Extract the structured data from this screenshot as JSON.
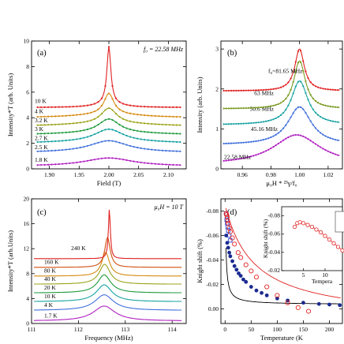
{
  "chart_data": [
    {
      "panel": "(a)",
      "type": "line",
      "annotation": "f₀ = 22.58 MHz",
      "xlabel": "Field (T)",
      "ylabel": "Intensity*T (arb. Units)",
      "xlim": [
        1.87,
        2.13
      ],
      "ylim": [
        0,
        10
      ],
      "xticks": [
        "1.90",
        "1.95",
        "2.00",
        "2.05",
        "2.10"
      ],
      "yticks": [
        "0",
        "2",
        "4",
        "6",
        "8",
        "10"
      ],
      "series": [
        {
          "name": "1.8 K",
          "color": "#b020c0",
          "offset": 0.2,
          "peak_x": 2.0,
          "peak": 0.65,
          "width": 0.05,
          "wing": 0.0
        },
        {
          "name": "2.5 K",
          "color": "#3f6fdc",
          "offset": 1.2,
          "peak_x": 2.0,
          "peak": 0.9,
          "width": 0.04,
          "wing": 0.1
        },
        {
          "name": "2.7 K",
          "color": "#18a2a2",
          "offset": 1.9,
          "peak_x": 2.0,
          "peak": 1.0,
          "width": 0.03,
          "wing": 0.2
        },
        {
          "name": "3 K",
          "color": "#1e9a3c",
          "offset": 2.6,
          "peak_x": 2.0,
          "peak": 1.1,
          "width": 0.022,
          "wing": 0.2
        },
        {
          "name": "3.2 K",
          "color": "#9aa318",
          "offset": 3.3,
          "peak_x": 2.0,
          "peak": 1.2,
          "width": 0.016,
          "wing": 0.25
        },
        {
          "name": "4 K",
          "color": "#d68a12",
          "offset": 4.0,
          "peak_x": 2.0,
          "peak": 1.6,
          "width": 0.01,
          "wing": 0.3
        },
        {
          "name": "10 K",
          "color": "#e02020",
          "offset": 4.8,
          "peak_x": 2.0,
          "peak": 4.4,
          "width": 0.004,
          "wing": 0.35
        }
      ]
    },
    {
      "panel": "(b)",
      "type": "line",
      "xlabel": "μ₀H * ²³γ/f₀",
      "ylabel": "Intensity (arb. Units)",
      "xlim": [
        0.945,
        1.03
      ],
      "ylim": [
        0,
        3.2
      ],
      "xticks": [
        "0.96",
        "0.98",
        "1.00",
        "1.02"
      ],
      "yticks": [
        "0",
        "1",
        "2",
        "3"
      ],
      "series": [
        {
          "name": "22.58 MHz",
          "label": "22.58 MHz",
          "color": "#b020c0",
          "offset": 0.1,
          "peak_x": 0.998,
          "peak": 0.75,
          "width": 0.02
        },
        {
          "name": "45.16 MHz",
          "label": "45.16 MHz",
          "color": "#3f6fdc",
          "offset": 0.6,
          "peak_x": 1.0,
          "peak": 0.95,
          "width": 0.01
        },
        {
          "name": "50.6 MHz",
          "label": "50.6 MHz",
          "color": "#18a2a2",
          "offset": 1.1,
          "peak_x": 1.0,
          "peak": 1.1,
          "width": 0.007
        },
        {
          "name": "63 MHz",
          "label": "63 MHz",
          "color": "#7a9a20",
          "offset": 1.5,
          "peak_x": 1.0,
          "peak": 1.2,
          "width": 0.005
        },
        {
          "name": "81.65 MHz",
          "label": "f₀=81.65 MHz",
          "color": "#e02020",
          "offset": 1.95,
          "peak_x": 1.0,
          "peak": 1.05,
          "width": 0.004
        }
      ]
    },
    {
      "panel": "(c)",
      "type": "line",
      "annotation": "μ₀H = 10 T",
      "xlabel": "Frequency (MHz)",
      "ylabel": "Intensity*T (arb.Units)",
      "xlim": [
        111,
        114.3
      ],
      "ylim": [
        0,
        20
      ],
      "xticks": [
        "111",
        "112",
        "113",
        "114"
      ],
      "yticks": [
        "0",
        "4",
        "8",
        "12",
        "16",
        "20"
      ],
      "series": [
        {
          "name": "1.7 K",
          "color": "#b020c0",
          "offset": 0.4,
          "peak_x": 112.55,
          "peak": 2.4,
          "width": 0.28
        },
        {
          "name": "4 K",
          "color": "#3f6fdc",
          "offset": 2.1,
          "peak_x": 112.55,
          "peak": 2.5,
          "width": 0.24
        },
        {
          "name": "10 K",
          "color": "#18a2a2",
          "offset": 3.5,
          "peak_x": 112.55,
          "peak": 2.7,
          "width": 0.2
        },
        {
          "name": "20 K",
          "color": "#1e9a3c",
          "offset": 4.9,
          "peak_x": 112.55,
          "peak": 2.9,
          "width": 0.17
        },
        {
          "name": "40 K",
          "color": "#9aa318",
          "offset": 6.3,
          "peak_x": 112.56,
          "peak": 3.2,
          "width": 0.14
        },
        {
          "name": "80 K",
          "color": "#d68a12",
          "offset": 7.6,
          "peak_x": 112.58,
          "peak": 3.8,
          "width": 0.1
        },
        {
          "name": "160 K",
          "color": "#d05010",
          "offset": 9.0,
          "peak_x": 112.62,
          "peak": 4.8,
          "width": 0.07
        },
        {
          "name": "240 K",
          "color": "#e02020",
          "offset": 10.4,
          "peak_x": 112.66,
          "peak": 8.0,
          "width": 0.025
        }
      ]
    },
    {
      "panel": "(d)",
      "type": "scatter",
      "xlabel": "Temperature (K",
      "ylabel": "Knight shift (%)",
      "xlim": [
        -8,
        225
      ],
      "ylim": [
        0.012,
        -0.09
      ],
      "xticks": [
        "0",
        "50",
        "100",
        "150",
        "200"
      ],
      "yticks": [
        "-0.08",
        "-0.06",
        "-0.04",
        "-0.02",
        "0.00"
      ],
      "series": [
        {
          "name": "blue-squares",
          "color": "#2040d0",
          "marker": "square",
          "x": [
            2,
            3,
            4,
            5,
            6,
            8,
            10
          ],
          "y": [
            -0.078,
            -0.073,
            -0.07,
            -0.067,
            -0.064,
            -0.06,
            -0.056
          ]
        },
        {
          "name": "blue-circles",
          "color": "#1a2a90",
          "marker": "filled-circle",
          "x": [
            2,
            4,
            6,
            8,
            10,
            14,
            18,
            22,
            26,
            30,
            35,
            40,
            50,
            60,
            70,
            80,
            100,
            120,
            150,
            180,
            200,
            220
          ],
          "y": [
            -0.06,
            -0.054,
            -0.05,
            -0.046,
            -0.043,
            -0.039,
            -0.035,
            -0.032,
            -0.029,
            -0.027,
            -0.024,
            -0.022,
            -0.018,
            -0.015,
            -0.013,
            -0.011,
            -0.0085,
            -0.0068,
            -0.005,
            -0.004,
            -0.0035,
            -0.003
          ]
        },
        {
          "name": "red-circles",
          "color": "#e02020",
          "marker": "open-circle",
          "x": [
            2,
            3,
            4,
            5,
            6,
            8,
            10,
            14,
            18,
            25,
            30,
            40,
            50,
            60,
            80,
            100,
            120,
            140,
            160
          ],
          "y": [
            -0.078,
            -0.077,
            -0.075,
            -0.072,
            -0.07,
            -0.066,
            -0.063,
            -0.058,
            -0.053,
            -0.046,
            -0.042,
            -0.036,
            -0.031,
            -0.026,
            -0.018,
            -0.011,
            -0.005,
            -0.001,
            0.002
          ]
        }
      ],
      "inset": {
        "ylabel": "Knight shift (%)",
        "xlabel": "Tempera",
        "xlim": [
          0,
          14
        ],
        "ylim": [
          -0.02,
          -0.09
        ],
        "yticks": [
          "-0.08",
          "-0.06",
          "-0.04",
          "-0.02"
        ],
        "xticks": [
          "5",
          "10"
        ],
        "series": [
          {
            "name": "inset-red",
            "color": "#e02020",
            "x": [
              3,
              3.6,
              4.2,
              5,
              6,
              7,
              8,
              9,
              10,
              11,
              12,
              13,
              14
            ],
            "y": [
              -0.068,
              -0.072,
              -0.073,
              -0.072,
              -0.07,
              -0.068,
              -0.065,
              -0.062,
              -0.058,
              -0.054,
              -0.05,
              -0.046,
              -0.042
            ]
          }
        ]
      }
    }
  ]
}
